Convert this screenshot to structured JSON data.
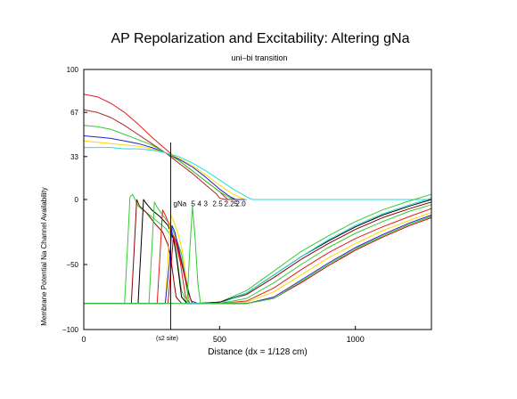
{
  "chart_data": {
    "type": "line",
    "title": "AP Repolarization and Excitability:  Altering gNa",
    "subtitle": "uni–bi transition",
    "xlabel": "Distance (dx = 1/128 cm)",
    "ylabel": "Membrane Potential   Na Channel Availability",
    "xlim": [
      0,
      1280
    ],
    "ylim": [
      -100,
      100
    ],
    "x_ticks": [
      {
        "value": 0,
        "label": "0"
      },
      {
        "value": 500,
        "label": "500"
      },
      {
        "value": 1000,
        "label": "1000"
      }
    ],
    "y_ticks": [
      {
        "value": 100,
        "label": "100"
      },
      {
        "value": 67,
        "label": "67"
      },
      {
        "value": 33,
        "label": "33"
      },
      {
        "value": 0,
        "label": "0"
      },
      {
        "value": -50,
        "label": "−50"
      },
      {
        "value": -100,
        "label": "−100"
      }
    ],
    "marker": {
      "x": 320,
      "label": "(s2 site)"
    },
    "gna_annotation": {
      "x": 330,
      "y": -5,
      "label": "gNa",
      "values": [
        "5",
        "4",
        "3",
        "2.5",
        "2.25",
        "2.0"
      ]
    },
    "grid": false,
    "series": [
      {
        "color": "#e41a1c",
        "x": [
          0,
          50,
          100,
          150,
          200,
          250,
          300,
          350,
          400,
          450,
          500,
          520,
          530,
          550,
          600
        ],
        "y": [
          81,
          79,
          74,
          67,
          58,
          48,
          39,
          30,
          22,
          14,
          6,
          2,
          0,
          0,
          0
        ]
      },
      {
        "color": "#b22222",
        "x": [
          0,
          50,
          100,
          150,
          200,
          250,
          300,
          350,
          400,
          450,
          490,
          500,
          520,
          600
        ],
        "y": [
          69,
          67,
          63,
          57,
          50,
          43,
          36,
          28,
          20,
          11,
          4,
          1,
          0,
          0
        ]
      },
      {
        "color": "#33cc33",
        "x": [
          0,
          50,
          100,
          150,
          200,
          250,
          300,
          350,
          400,
          450,
          500,
          540,
          560,
          600
        ],
        "y": [
          57,
          56,
          54,
          50,
          46,
          42,
          36,
          30,
          22,
          14,
          6,
          1,
          0,
          0
        ]
      },
      {
        "color": "#2222cc",
        "x": [
          0,
          50,
          100,
          150,
          200,
          250,
          300,
          350,
          400,
          450,
          500,
          540,
          560,
          600
        ],
        "y": [
          49,
          48,
          47,
          45,
          43,
          40,
          36,
          31,
          25,
          17,
          8,
          2,
          0,
          0
        ]
      },
      {
        "color": "#ffd700",
        "x": [
          0,
          50,
          100,
          150,
          200,
          250,
          300,
          350,
          400,
          450,
          500,
          550,
          580,
          600
        ],
        "y": [
          45,
          44,
          43,
          42,
          41,
          39,
          36,
          32,
          26,
          19,
          11,
          4,
          1,
          0
        ]
      },
      {
        "color": "#22dddd",
        "x": [
          0,
          50,
          100,
          150,
          200,
          250,
          300,
          350,
          400,
          450,
          500,
          550,
          600,
          620,
          1280
        ],
        "y": [
          40,
          40,
          40,
          39,
          39,
          38,
          36,
          33,
          28,
          22,
          15,
          8,
          2,
          0,
          0
        ]
      },
      {
        "color": "#33cc33",
        "x": [
          0,
          150,
          160,
          170,
          180,
          200,
          230,
          260,
          300,
          330,
          340,
          350,
          360,
          380,
          400,
          500,
          600,
          700,
          800,
          900,
          1000,
          1100,
          1200,
          1280
        ],
        "y": [
          -80,
          -80,
          -40,
          2,
          4,
          -5,
          -10,
          -15,
          -22,
          -30,
          -40,
          -55,
          -70,
          -80,
          -80,
          -79,
          -70,
          -55,
          -40,
          -28,
          -17,
          -8,
          -1,
          4
        ]
      },
      {
        "color": "#000000",
        "x": [
          0,
          200,
          210,
          220,
          230,
          250,
          280,
          310,
          330,
          340,
          350,
          360,
          380,
          420,
          500,
          600,
          700,
          800,
          900,
          1000,
          1100,
          1200,
          1280
        ],
        "y": [
          -80,
          -80,
          -40,
          0,
          -3,
          -8,
          -13,
          -20,
          -30,
          -42,
          -58,
          -75,
          -80,
          -80,
          -79,
          -72,
          -58,
          -44,
          -32,
          -21,
          -12,
          -5,
          0
        ]
      },
      {
        "color": "#8b0000",
        "x": [
          0,
          175,
          185,
          195,
          205,
          230,
          260,
          290,
          310,
          320,
          330,
          340,
          360,
          420,
          500,
          600,
          700,
          800,
          900,
          1000,
          1100,
          1200,
          1280
        ],
        "y": [
          -80,
          -80,
          -40,
          0,
          -5,
          -10,
          -18,
          -25,
          -35,
          -45,
          -60,
          -75,
          -80,
          -80,
          -79,
          -73,
          -60,
          -46,
          -34,
          -23,
          -14,
          -7,
          -2
        ]
      },
      {
        "color": "#33cc33",
        "x": [
          0,
          240,
          250,
          260,
          270,
          290,
          320,
          340,
          360,
          370,
          380,
          390,
          410,
          500,
          600,
          700,
          800,
          900,
          1000,
          1100,
          1200,
          1280
        ],
        "y": [
          -80,
          -80,
          -40,
          -2,
          -6,
          -12,
          -20,
          -30,
          -42,
          -55,
          -70,
          -80,
          -80,
          -80,
          -76,
          -64,
          -50,
          -37,
          -26,
          -17,
          -9,
          -4
        ]
      },
      {
        "color": "#e41a1c",
        "x": [
          0,
          270,
          280,
          290,
          300,
          320,
          340,
          355,
          365,
          375,
          390,
          420,
          500,
          600,
          700,
          800,
          900,
          1000,
          1100,
          1200,
          1280
        ],
        "y": [
          -80,
          -80,
          -45,
          -8,
          -12,
          -22,
          -35,
          -48,
          -62,
          -75,
          -80,
          -80,
          -80,
          -78,
          -68,
          -54,
          -41,
          -30,
          -21,
          -13,
          -7
        ]
      },
      {
        "color": "#ffd700",
        "x": [
          0,
          300,
          310,
          320,
          330,
          350,
          365,
          375,
          385,
          400,
          430,
          500,
          600,
          700,
          800,
          900,
          1000,
          1100,
          1200,
          1280
        ],
        "y": [
          -80,
          -80,
          -45,
          -12,
          -16,
          -28,
          -42,
          -58,
          -72,
          -80,
          -80,
          -80,
          -79,
          -71,
          -58,
          -45,
          -34,
          -24,
          -16,
          -10
        ]
      },
      {
        "color": "#2222cc",
        "x": [
          0,
          300,
          315,
          325,
          335,
          350,
          365,
          380,
          395,
          420,
          500,
          600,
          700,
          800,
          900,
          1000,
          1100,
          1200,
          1280
        ],
        "y": [
          -80,
          -80,
          -50,
          -20,
          -25,
          -38,
          -52,
          -66,
          -78,
          -80,
          -80,
          -80,
          -75,
          -62,
          -49,
          -37,
          -27,
          -18,
          -12
        ]
      },
      {
        "color": "#cc0000",
        "x": [
          0,
          310,
          320,
          330,
          340,
          355,
          370,
          385,
          400,
          430,
          500,
          600,
          700,
          800,
          900,
          1000,
          1100,
          1200,
          1280
        ],
        "y": [
          -80,
          -80,
          -55,
          -28,
          -32,
          -45,
          -58,
          -72,
          -80,
          -80,
          -80,
          -80,
          -76,
          -64,
          -51,
          -39,
          -29,
          -20,
          -14
        ]
      },
      {
        "color": "#22dddd",
        "x": [
          0,
          500,
          600,
          700,
          800,
          900,
          1000,
          1100,
          1200,
          1280
        ],
        "y": [
          -80,
          -80,
          -72,
          -58,
          -44,
          -31,
          -20,
          -11,
          -4,
          1
        ]
      },
      {
        "color": "#33cc33",
        "x": [
          0,
          380,
          390,
          400,
          410,
          420,
          430,
          500,
          600,
          700,
          800,
          900,
          1000,
          1100,
          1200,
          1280
        ],
        "y": [
          -80,
          -80,
          -40,
          -5,
          -30,
          -65,
          -80,
          -80,
          -80,
          -76,
          -63,
          -50,
          -38,
          -28,
          -19,
          -13
        ]
      }
    ]
  }
}
